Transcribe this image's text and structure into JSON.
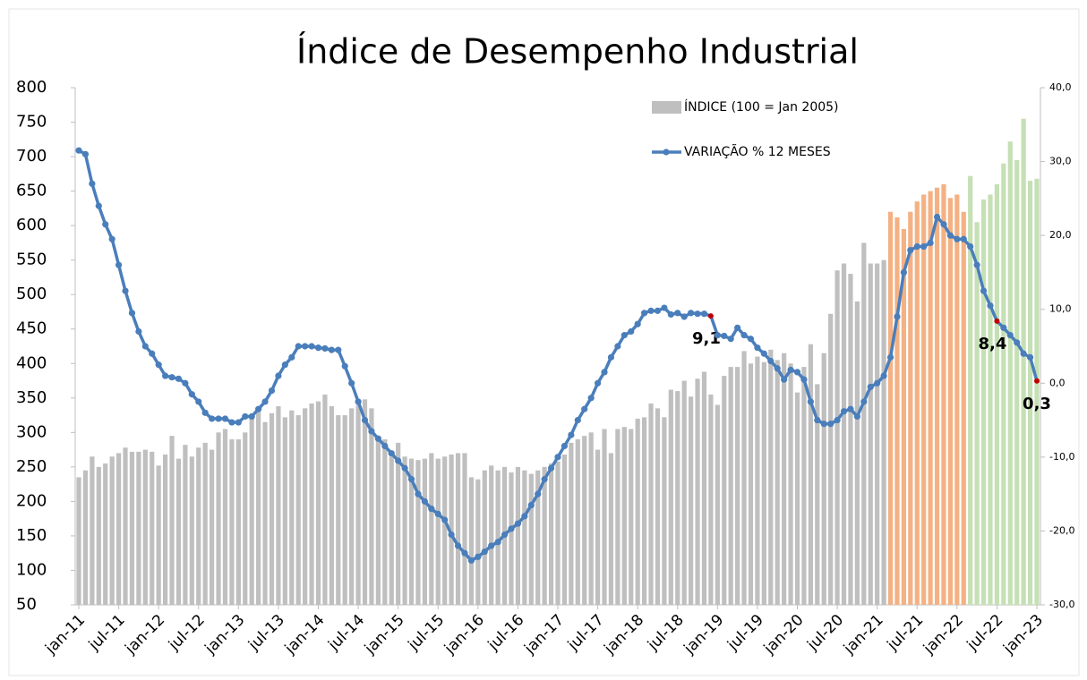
{
  "chart_data": {
    "type": "bar-line",
    "title": "Índice de Desempenho  Industrial",
    "categories": [
      "jan-11",
      null,
      null,
      null,
      null,
      null,
      "jul-11",
      null,
      null,
      null,
      null,
      null,
      "jan-12",
      null,
      null,
      null,
      null,
      null,
      "jul-12",
      null,
      null,
      null,
      null,
      null,
      "jan-13",
      null,
      null,
      null,
      null,
      null,
      "jul-13",
      null,
      null,
      null,
      null,
      null,
      "jan-14",
      null,
      null,
      null,
      null,
      null,
      "jul-14",
      null,
      null,
      null,
      null,
      null,
      "jan-15",
      null,
      null,
      null,
      null,
      null,
      "jul-15",
      null,
      null,
      null,
      null,
      null,
      "jan-16",
      null,
      null,
      null,
      null,
      null,
      "jul-16",
      null,
      null,
      null,
      null,
      null,
      "jan-17",
      null,
      null,
      null,
      null,
      null,
      "jul-17",
      null,
      null,
      null,
      null,
      null,
      "jan-18",
      null,
      null,
      null,
      null,
      null,
      "jul-18",
      null,
      null,
      null,
      null,
      null,
      "jan-19",
      null,
      null,
      null,
      null,
      null,
      "jul-19",
      null,
      null,
      null,
      null,
      null,
      "jan-20",
      null,
      null,
      null,
      null,
      null,
      "jul-20",
      null,
      null,
      null,
      null,
      null,
      "jan-21",
      null,
      null,
      null,
      null,
      null,
      "jul-21",
      null,
      null,
      null,
      null,
      null,
      "jan-22",
      null,
      null,
      null,
      null,
      null,
      "jul-22",
      null,
      null,
      null,
      null,
      null,
      "jan-23"
    ],
    "series": [
      {
        "name": "ÍNDICE (100 = Jan 2005)",
        "type": "bar",
        "color": "#bfbfbf",
        "highlight_colors": {
          "orange": "#f4b183",
          "green": "#c5e0b4"
        },
        "values": [
          235,
          245,
          265,
          250,
          255,
          265,
          270,
          278,
          272,
          272,
          275,
          272,
          252,
          268,
          295,
          262,
          282,
          265,
          278,
          285,
          275,
          300,
          305,
          290,
          290,
          300,
          320,
          330,
          315,
          328,
          338,
          322,
          332,
          325,
          335,
          342,
          345,
          355,
          338,
          325,
          325,
          335,
          340,
          348,
          335,
          292,
          290,
          265,
          285,
          265,
          262,
          260,
          262,
          270,
          262,
          265,
          268,
          270,
          270,
          235,
          232,
          245,
          252,
          245,
          250,
          242,
          250,
          245,
          240,
          245,
          250,
          255,
          258,
          268,
          285,
          290,
          295,
          300,
          275,
          305,
          270,
          305,
          308,
          305,
          320,
          322,
          342,
          335,
          322,
          362,
          360,
          375,
          352,
          378,
          388,
          355,
          340,
          382,
          395,
          395,
          418,
          400,
          410,
          402,
          420,
          405,
          415,
          400,
          358,
          395,
          428,
          370,
          415,
          472,
          535,
          545,
          530,
          490,
          575,
          545,
          545,
          550,
          620,
          612,
          595,
          620,
          635,
          645,
          650,
          655,
          660,
          640,
          645,
          620,
          672,
          605,
          638,
          645,
          660,
          690,
          722,
          695,
          755,
          665,
          668
        ],
        "color_groups": [
          "gray",
          "gray",
          "gray",
          "gray",
          "gray",
          "gray",
          "gray",
          "gray",
          "gray",
          "gray",
          "gray",
          "gray",
          "gray",
          "gray",
          "gray",
          "gray",
          "gray",
          "gray",
          "gray",
          "gray",
          "gray",
          "gray",
          "gray",
          "gray",
          "gray",
          "gray",
          "gray",
          "gray",
          "gray",
          "gray",
          "gray",
          "gray",
          "gray",
          "gray",
          "gray",
          "gray",
          "gray",
          "gray",
          "gray",
          "gray",
          "gray",
          "gray",
          "gray",
          "gray",
          "gray",
          "gray",
          "gray",
          "gray",
          "gray",
          "gray",
          "gray",
          "gray",
          "gray",
          "gray",
          "gray",
          "gray",
          "gray",
          "gray",
          "gray",
          "gray",
          "gray",
          "gray",
          "gray",
          "gray",
          "gray",
          "gray",
          "gray",
          "gray",
          "gray",
          "gray",
          "gray",
          "gray",
          "gray",
          "gray",
          "gray",
          "gray",
          "gray",
          "gray",
          "gray",
          "gray",
          "gray",
          "gray",
          "gray",
          "gray",
          "gray",
          "gray",
          "gray",
          "gray",
          "gray",
          "gray",
          "gray",
          "gray",
          "gray",
          "gray",
          "gray",
          "gray",
          "gray",
          "gray",
          "gray",
          "gray",
          "gray",
          "gray",
          "gray",
          "gray",
          "gray",
          "gray",
          "gray",
          "gray",
          "gray",
          "gray",
          "gray",
          "gray",
          "gray",
          "gray",
          "gray",
          "gray",
          "gray",
          "gray",
          "gray",
          "gray",
          "gray",
          "gray",
          "orange",
          "orange",
          "orange",
          "orange",
          "orange",
          "orange",
          "orange",
          "orange",
          "orange",
          "orange",
          "orange",
          "orange",
          "green",
          "green",
          "green",
          "green",
          "green",
          "green",
          "green",
          "green",
          "green",
          "green",
          "green"
        ]
      },
      {
        "name": "VARIAÇÃO % 12 MESES",
        "type": "line",
        "axis": "y2",
        "color": "#4a7ebb",
        "highlight_color": "#c00000",
        "values": [
          31.5,
          31.0,
          27,
          24,
          21.5,
          19.5,
          16,
          12.5,
          9.5,
          7,
          5,
          4,
          2.5,
          1,
          0.8,
          0.6,
          0,
          -1.5,
          -2.5,
          -4,
          -4.8,
          -4.8,
          -4.8,
          -5.3,
          -5.3,
          -4.5,
          -4.5,
          -3.5,
          -2.5,
          -1,
          1,
          2.5,
          3.5,
          5,
          5,
          5,
          4.8,
          4.7,
          4.5,
          4.5,
          2.3,
          0,
          -2.5,
          -5,
          -6.5,
          -7.5,
          -8.5,
          -9.5,
          -10.5,
          -11.5,
          -13,
          -15,
          -16,
          -17,
          -17.7,
          -18.5,
          -20.5,
          -22,
          -23,
          -24,
          -23.5,
          -22.8,
          -22,
          -21.5,
          -20.5,
          -19.7,
          -19,
          -18,
          -16.5,
          -15,
          -13,
          -11.5,
          -10,
          -8.5,
          -7,
          -5,
          -3.5,
          -2,
          0,
          1.5,
          3.5,
          5,
          6.5,
          7,
          8,
          9.5,
          9.8,
          9.8,
          10.2,
          9.3,
          9.5,
          9,
          9.5,
          9.4,
          9.4,
          9.1,
          6.5,
          6.4,
          6,
          7.5,
          6.5,
          6,
          4.8,
          4,
          3,
          2,
          0.5,
          1.8,
          1.5,
          0.5,
          -2.5,
          -5,
          -5.5,
          -5.5,
          -5,
          -3.8,
          -3.5,
          -4.5,
          -2.5,
          -0.5,
          0,
          1,
          3.5,
          9,
          15,
          18,
          18.5,
          18.5,
          19,
          22.5,
          21.5,
          20,
          19.5,
          19.5,
          18.5,
          16,
          12.5,
          10.5,
          8.4,
          7.5,
          6.5,
          5.5,
          4,
          3.5,
          0.3
        ],
        "value_labels": [
          null,
          null,
          null,
          null,
          null,
          null,
          null,
          null,
          null,
          null,
          null,
          null,
          null,
          null,
          null,
          null,
          null,
          null,
          null,
          null,
          null,
          null,
          null,
          null,
          null,
          null,
          null,
          null,
          null,
          null,
          null,
          null,
          null,
          null,
          null,
          null,
          null,
          null,
          null,
          null,
          null,
          null,
          null,
          null,
          null,
          null,
          null,
          null,
          null,
          null,
          null,
          null,
          null,
          null,
          null,
          null,
          null,
          null,
          null,
          null,
          null,
          null,
          null,
          null,
          null,
          null,
          null,
          null,
          null,
          null,
          null,
          null,
          null,
          null,
          null,
          null,
          null,
          null,
          null,
          null,
          null,
          null,
          null,
          null,
          null,
          null,
          null,
          null,
          null,
          null,
          null,
          null,
          null,
          null,
          null,
          "9,1",
          null,
          null,
          null,
          null,
          null,
          null,
          null,
          null,
          null,
          null,
          null,
          null,
          null,
          null,
          null,
          null,
          null,
          null,
          null,
          null,
          null,
          null,
          null,
          null,
          null,
          null,
          null,
          null,
          null,
          null,
          null,
          null,
          null,
          null,
          null,
          null,
          null,
          null,
          null,
          null,
          null,
          null,
          "8,4",
          null,
          null,
          null,
          null,
          null,
          "0,3"
        ]
      }
    ],
    "ylim": [
      50,
      800
    ],
    "yticks": [
      50,
      100,
      150,
      200,
      250,
      300,
      350,
      400,
      450,
      500,
      550,
      600,
      650,
      700,
      750,
      800
    ],
    "y2lim": [
      -30,
      40
    ],
    "y2ticks": [
      {
        "value": -30,
        "label": "-30,0"
      },
      {
        "value": -20,
        "label": "-20,0"
      },
      {
        "value": -10,
        "label": "-10,0"
      },
      {
        "value": 0,
        "label": "0,0"
      },
      {
        "value": 10,
        "label": "10,0"
      },
      {
        "value": 20,
        "label": "20,0"
      },
      {
        "value": 30,
        "label": "30,0"
      },
      {
        "value": 40,
        "label": "40,0"
      }
    ],
    "legend": "top-right",
    "grid": false
  }
}
